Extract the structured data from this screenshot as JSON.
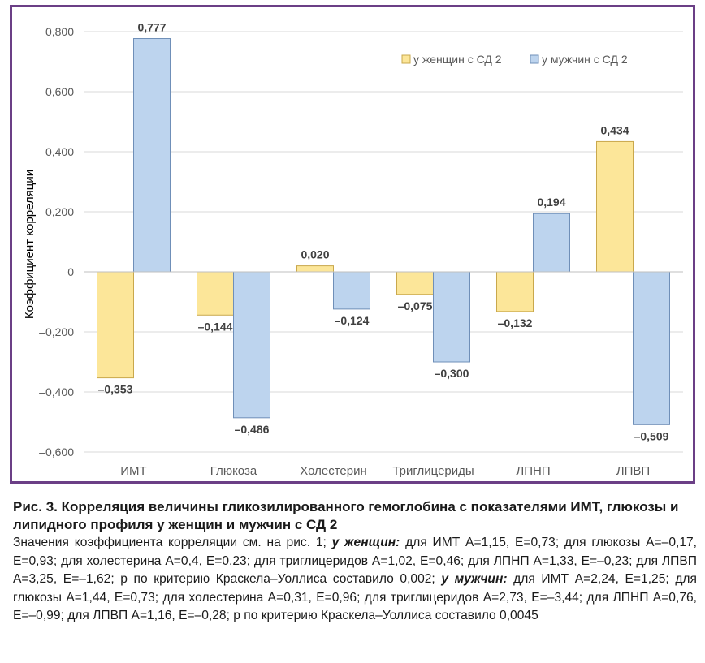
{
  "chart_data": {
    "type": "bar",
    "categories": [
      "ИМТ",
      "Глюкоза",
      "Холестерин",
      "Триглицериды",
      "ЛПНП",
      "ЛПВП"
    ],
    "series": [
      {
        "name": "у женщин с СД 2",
        "color": "#fce699",
        "stroke": "#c9a84c",
        "values": [
          -0.353,
          -0.144,
          0.02,
          -0.075,
          -0.132,
          0.434
        ],
        "labels": [
          "–0,353",
          "–0,144",
          "0,020",
          "–0,075",
          "–0,132",
          "0,434"
        ]
      },
      {
        "name": "у мужчин с СД 2",
        "color": "#bdd4ee",
        "stroke": "#6f8fb8",
        "values": [
          0.777,
          -0.486,
          -0.124,
          -0.3,
          0.194,
          -0.509
        ],
        "labels": [
          "0,777",
          "–0,486",
          "–0,124",
          "–0,300",
          "0,194",
          "–0,509"
        ]
      }
    ],
    "ylabel": "Коэффициент корреляции",
    "ylim": [
      -0.6,
      0.8
    ],
    "yticks": [
      0.8,
      0.6,
      0.4,
      0.2,
      0,
      -0.2,
      -0.4,
      -0.6
    ],
    "ytick_labels": [
      "0,800",
      "0,600",
      "0,400",
      "0,200",
      "0",
      "–0,200",
      "–0,400",
      "–0,600"
    ],
    "grid": true,
    "legend_position": "top-right"
  },
  "caption": {
    "title": "Рис. 3. Корреляция величины гликозилированного гемоглобина с показателями ИМТ, глюкозы и липидного профиля у женщин и мужчин с СД 2",
    "body_pre": "Значения коэффициента корреляции см. на рис. 1; ",
    "women_label": "у женщин:",
    "women_text": " для ИМТ А=1,15, Е=0,73; для глюкозы А=–0,17, Е=0,93; для холестерина А=0,4, Е=0,23; для триглицеридов А=1,02, Е=0,46; для ЛПНП А=1,33, Е=–0,23; для ЛПВП А=3,25, Е=–1,62; p по критерию Краскела–Уоллиса составило 0,002; ",
    "men_label": "у мужчин:",
    "men_text": " для ИМТ А=2,24, Е=1,25; для глюкозы А=1,44, Е=0,73; для холестерина А=0,31, Е=0,96; для триглицеридов А=2,73, Е=–3,44; для ЛПНП А=0,76, Е=–0,99; для ЛПВП А=1,16, Е=–0,28; p по критерию Краскела–Уоллиса составило 0,0045"
  }
}
